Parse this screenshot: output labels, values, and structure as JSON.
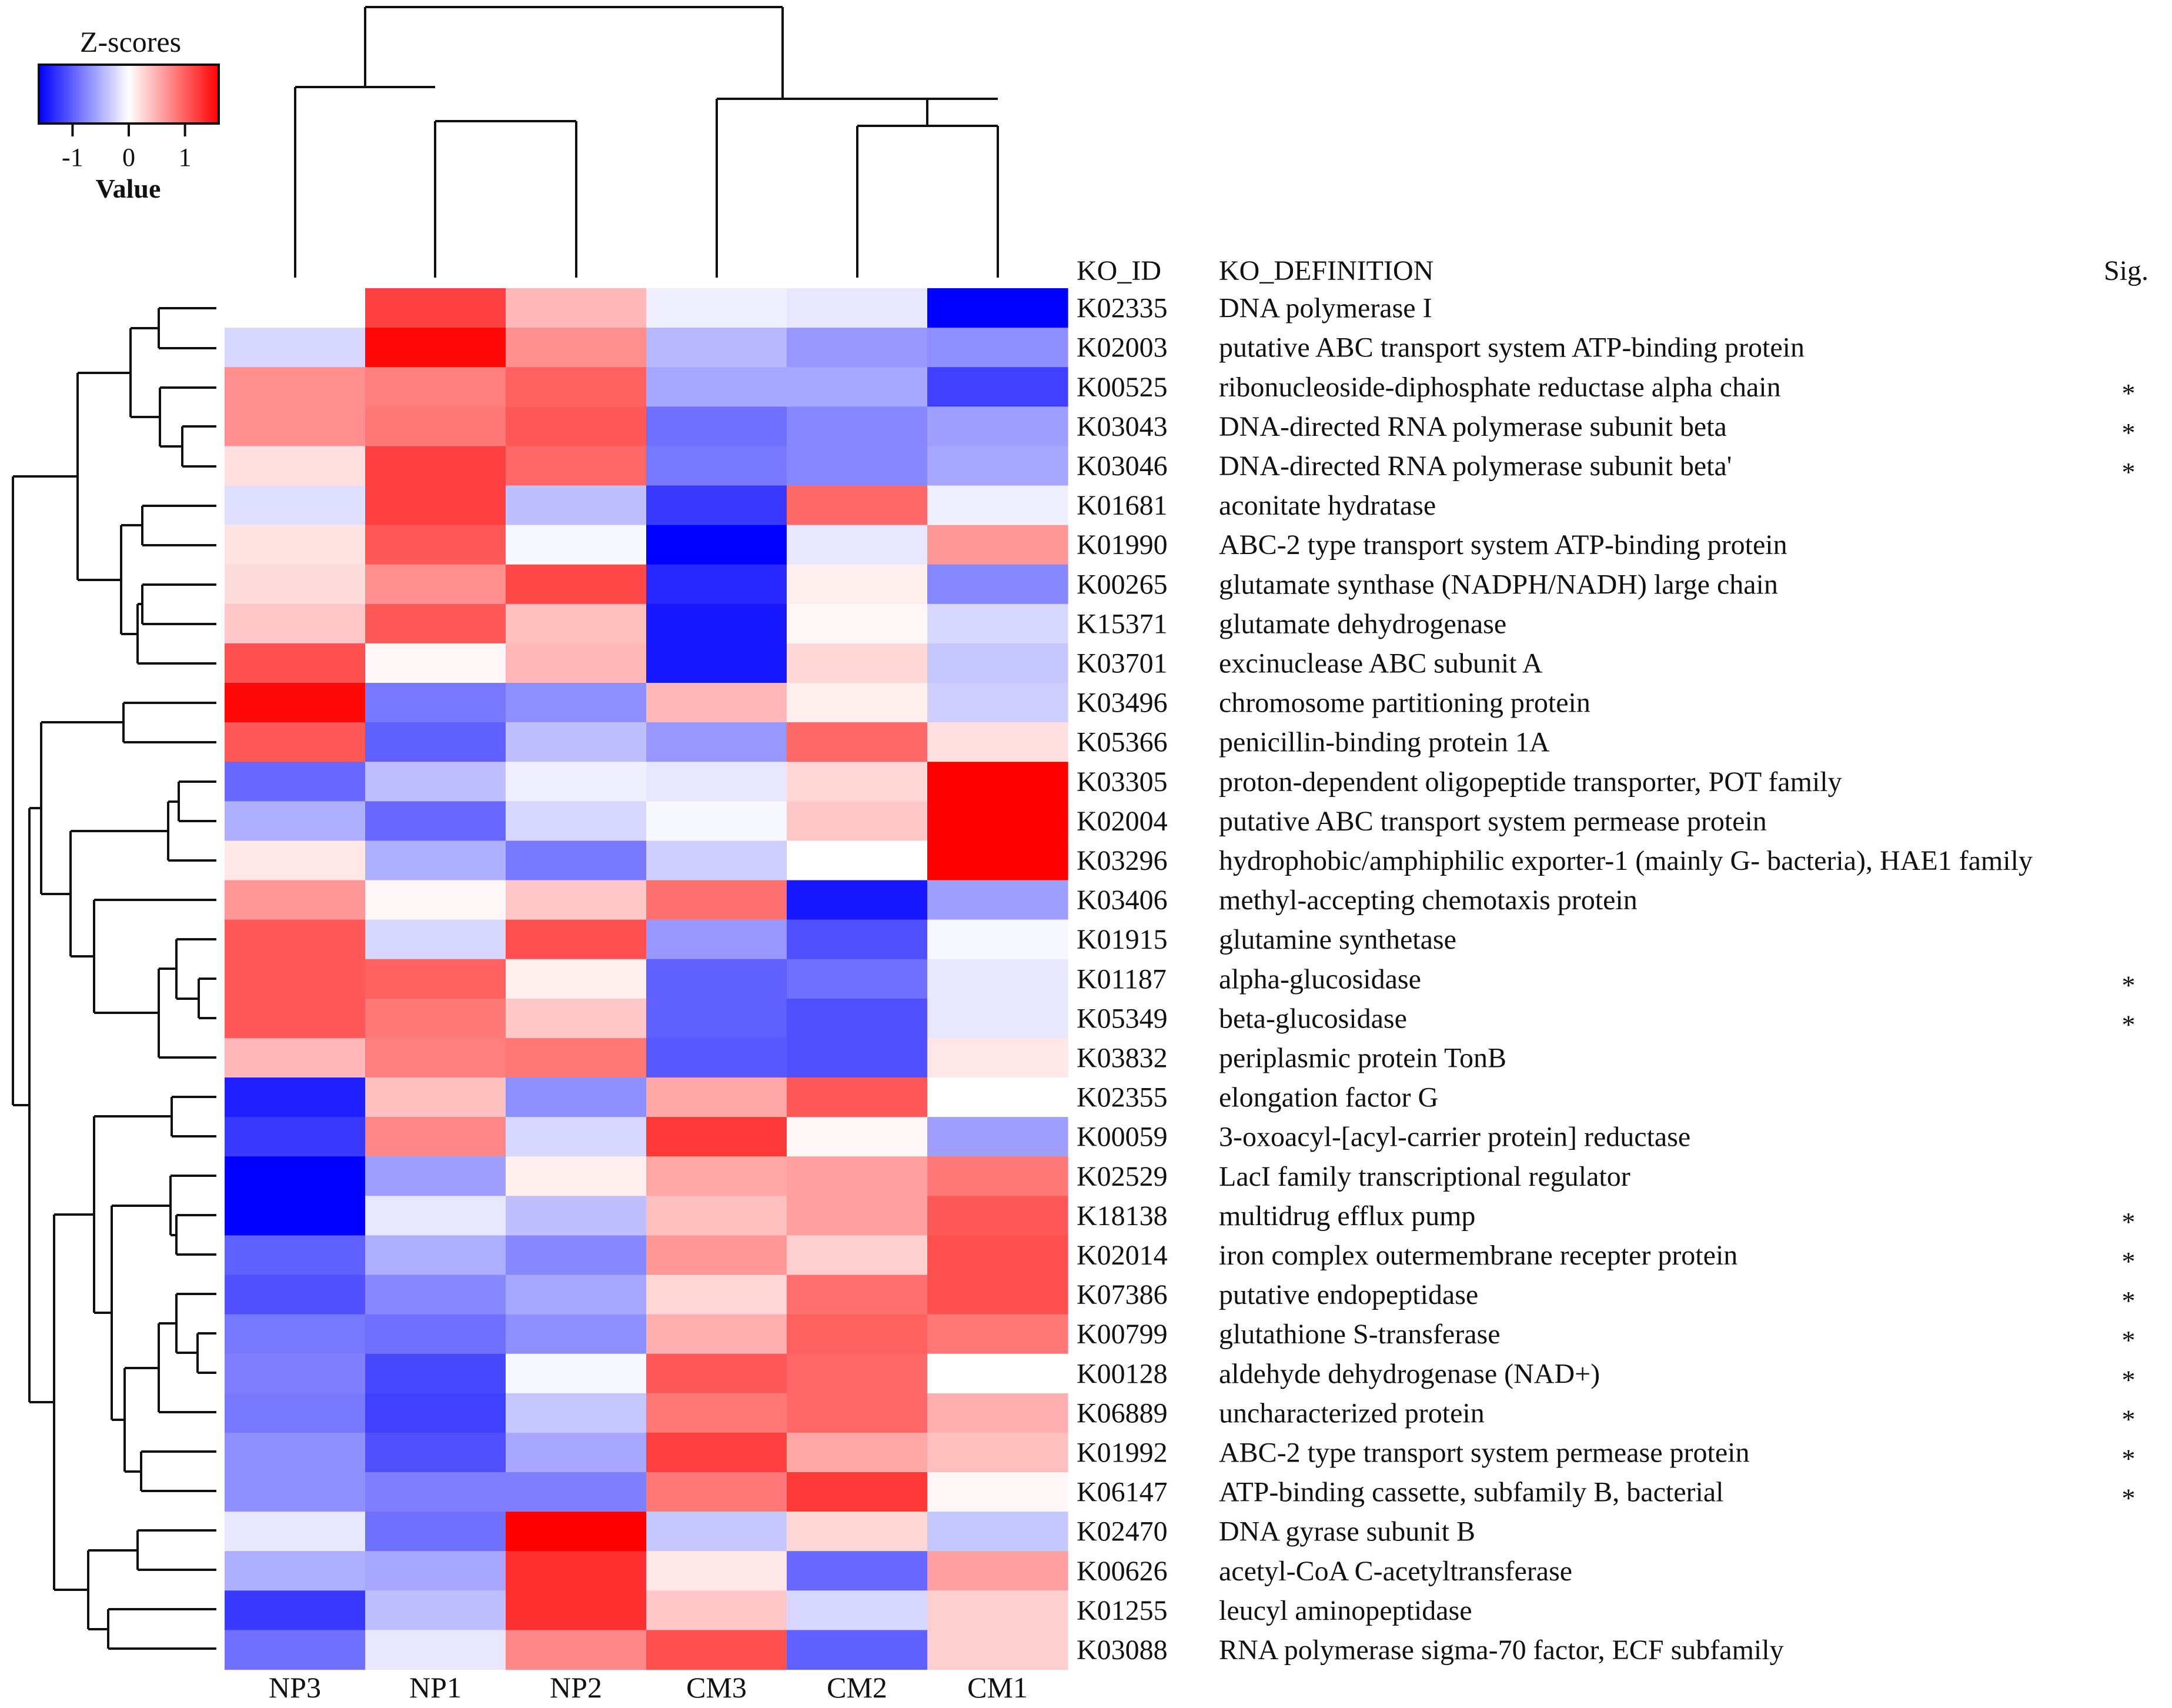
{
  "chart_data": {
    "type": "heatmap",
    "title": "",
    "legend": {
      "title": "Z-scores",
      "xlabel": "Value",
      "ticks": [
        "-1",
        "0",
        "1"
      ],
      "range": [
        -1.6,
        1.6
      ],
      "colors": {
        "low": "#0000ff",
        "mid": "#ffffff",
        "high": "#ff0000"
      },
      "placement": "top-left"
    },
    "header": {
      "id": "KO_ID",
      "definition": "KO_DEFINITION",
      "sig": "Sig."
    },
    "columns": [
      "NP3",
      "NP1",
      "NP2",
      "CM3",
      "CM2",
      "CM1"
    ],
    "rows": [
      {
        "id": "K02335",
        "definition": "DNA polymerase I",
        "sig": "",
        "values": [
          0.0,
          1.2,
          0.45,
          -0.1,
          -0.15,
          -1.6
        ]
      },
      {
        "id": "K02003",
        "definition": "putative ABC transport system ATP-binding protein",
        "sig": "",
        "values": [
          -0.25,
          1.55,
          0.7,
          -0.45,
          -0.65,
          -0.7
        ]
      },
      {
        "id": "K00525",
        "definition": "ribonucleoside-diphosphate reductase alpha chain",
        "sig": "*",
        "values": [
          0.7,
          0.8,
          1.0,
          -0.55,
          -0.55,
          -1.2
        ]
      },
      {
        "id": "K03043",
        "definition": "DNA-directed RNA polymerase subunit beta",
        "sig": "*",
        "values": [
          0.7,
          0.85,
          1.05,
          -0.9,
          -0.75,
          -0.6
        ]
      },
      {
        "id": "K03046",
        "definition": "DNA-directed RNA polymerase subunit beta'",
        "sig": "*",
        "values": [
          0.2,
          1.2,
          0.95,
          -0.85,
          -0.75,
          -0.55
        ]
      },
      {
        "id": "K01681",
        "definition": "aconitate hydratase",
        "sig": "",
        "values": [
          -0.2,
          1.2,
          -0.4,
          -1.25,
          0.95,
          -0.1
        ]
      },
      {
        "id": "K01990",
        "definition": "ABC-2 type transport system ATP-binding protein",
        "sig": "",
        "values": [
          0.18,
          1.05,
          -0.05,
          -1.6,
          -0.15,
          0.65
        ]
      },
      {
        "id": "K00265",
        "definition": "glutamate synthase (NADPH/NADH) large chain",
        "sig": "",
        "values": [
          0.22,
          0.7,
          1.15,
          -1.35,
          0.1,
          -0.75
        ]
      },
      {
        "id": "K15371",
        "definition": "glutamate dehydrogenase",
        "sig": "",
        "values": [
          0.35,
          1.05,
          0.4,
          -1.45,
          0.05,
          -0.25
        ]
      },
      {
        "id": "K03701",
        "definition": "excinuclease ABC subunit A",
        "sig": "",
        "values": [
          1.1,
          0.05,
          0.45,
          -1.45,
          0.25,
          -0.35
        ]
      },
      {
        "id": "K03496",
        "definition": "chromosome partitioning protein",
        "sig": "",
        "values": [
          1.55,
          -0.85,
          -0.7,
          0.45,
          0.1,
          -0.3
        ]
      },
      {
        "id": "K05366",
        "definition": "penicillin-binding protein 1A",
        "sig": "",
        "values": [
          1.05,
          -1.0,
          -0.4,
          -0.65,
          0.95,
          0.2
        ]
      },
      {
        "id": "K03305",
        "definition": "proton-dependent oligopeptide transporter, POT family",
        "sig": "",
        "values": [
          -0.95,
          -0.4,
          -0.1,
          -0.15,
          0.25,
          1.6
        ]
      },
      {
        "id": "K02004",
        "definition": "putative ABC transport system permease protein",
        "sig": "",
        "values": [
          -0.5,
          -0.95,
          -0.25,
          -0.05,
          0.35,
          1.6
        ]
      },
      {
        "id": "K03296",
        "definition": "hydrophobic/amphiphilic exporter-1 (mainly G- bacteria), HAE1 family",
        "sig": "",
        "values": [
          0.15,
          -0.5,
          -0.85,
          -0.3,
          0.0,
          1.6
        ]
      },
      {
        "id": "K03406",
        "definition": "methyl-accepting chemotaxis protein",
        "sig": "",
        "values": [
          0.65,
          0.05,
          0.35,
          0.9,
          -1.45,
          -0.6
        ]
      },
      {
        "id": "K01915",
        "definition": "glutamine synthetase",
        "sig": "",
        "values": [
          1.05,
          -0.25,
          1.1,
          -0.65,
          -1.1,
          -0.05
        ]
      },
      {
        "id": "K01187",
        "definition": "alpha-glucosidase",
        "sig": "*",
        "values": [
          1.05,
          1.0,
          0.1,
          -1.0,
          -0.9,
          -0.15
        ]
      },
      {
        "id": "K05349",
        "definition": "beta-glucosidase",
        "sig": "*",
        "values": [
          1.05,
          0.85,
          0.35,
          -1.0,
          -1.1,
          -0.15
        ]
      },
      {
        "id": "K03832",
        "definition": "periplasmic protein TonB",
        "sig": "",
        "values": [
          0.45,
          0.8,
          0.85,
          -1.05,
          -1.1,
          0.15
        ]
      },
      {
        "id": "K02355",
        "definition": "elongation factor G",
        "sig": "",
        "values": [
          -1.4,
          0.4,
          -0.7,
          0.55,
          1.05,
          0.0
        ]
      },
      {
        "id": "K00059",
        "definition": "3-oxoacyl-[acyl-carrier protein] reductase",
        "sig": "",
        "values": [
          -1.25,
          0.75,
          -0.25,
          1.25,
          0.05,
          -0.6
        ]
      },
      {
        "id": "K02529",
        "definition": "LacI family transcriptional regulator",
        "sig": "",
        "values": [
          -1.6,
          -0.6,
          0.1,
          0.55,
          0.6,
          0.85
        ]
      },
      {
        "id": "K18138",
        "definition": "multidrug efflux pump",
        "sig": "*",
        "values": [
          -1.6,
          -0.15,
          -0.4,
          0.4,
          0.6,
          1.05
        ]
      },
      {
        "id": "K02014",
        "definition": "iron complex outermembrane recepter protein",
        "sig": "*",
        "values": [
          -1.0,
          -0.5,
          -0.75,
          0.65,
          0.3,
          1.1
        ]
      },
      {
        "id": "K07386",
        "definition": "putative endopeptidase",
        "sig": "*",
        "values": [
          -1.1,
          -0.75,
          -0.55,
          0.25,
          0.9,
          1.1
        ]
      },
      {
        "id": "K00799",
        "definition": "glutathione S-transferase",
        "sig": "*",
        "values": [
          -0.85,
          -0.9,
          -0.7,
          0.5,
          1.0,
          0.85
        ]
      },
      {
        "id": "K00128",
        "definition": "aldehyde dehydrogenase (NAD+)",
        "sig": "*",
        "values": [
          -0.8,
          -1.15,
          -0.05,
          1.05,
          0.95,
          0.0
        ]
      },
      {
        "id": "K06889",
        "definition": "uncharacterized protein",
        "sig": "*",
        "values": [
          -0.85,
          -1.2,
          -0.35,
          0.85,
          0.95,
          0.5
        ]
      },
      {
        "id": "K01992",
        "definition": "ABC-2 type transport system permease protein",
        "sig": "*",
        "values": [
          -0.7,
          -1.1,
          -0.55,
          1.2,
          0.55,
          0.4
        ]
      },
      {
        "id": "K06147",
        "definition": "ATP-binding cassette, subfamily B, bacterial",
        "sig": "*",
        "values": [
          -0.7,
          -0.8,
          -0.8,
          0.85,
          1.25,
          0.05
        ]
      },
      {
        "id": "K02470",
        "definition": "DNA gyrase subunit B",
        "sig": "",
        "values": [
          -0.15,
          -0.9,
          1.6,
          -0.35,
          0.25,
          -0.35
        ]
      },
      {
        "id": "K00626",
        "definition": "acetyl-CoA C-acetyltransferase",
        "sig": "",
        "values": [
          -0.5,
          -0.55,
          1.3,
          0.15,
          -0.95,
          0.6
        ]
      },
      {
        "id": "K01255",
        "definition": "leucyl aminopeptidase",
        "sig": "",
        "values": [
          -1.25,
          -0.4,
          1.3,
          0.35,
          -0.25,
          0.3
        ]
      },
      {
        "id": "K03088",
        "definition": "RNA polymerase sigma-70 factor, ECF subfamily",
        "sig": "",
        "values": [
          -0.9,
          -0.15,
          0.75,
          1.1,
          -1.0,
          0.3
        ]
      }
    ]
  }
}
